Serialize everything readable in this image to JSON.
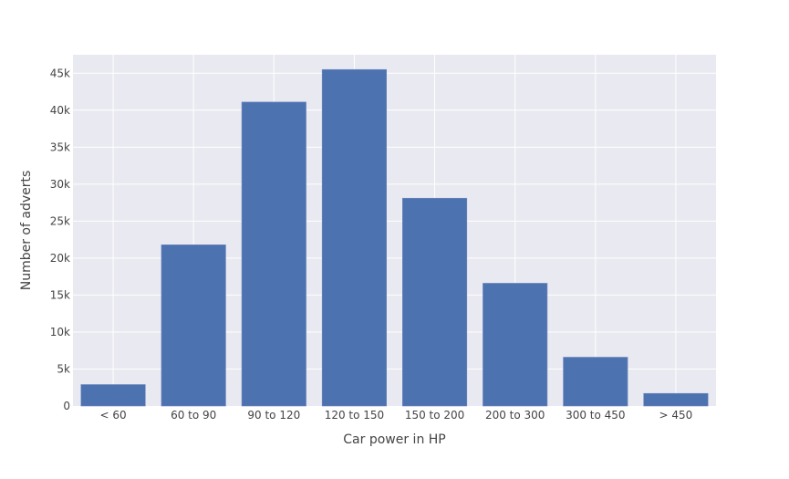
{
  "chart_data": {
    "type": "bar",
    "title": "",
    "xlabel": "Car power in HP",
    "ylabel": "Number of adverts",
    "categories": [
      "< 60",
      "60 to 90",
      "90 to 120",
      "120 to 150",
      "150 to 200",
      "200 to 300",
      "300 to 450",
      "> 450"
    ],
    "values": [
      2900,
      21800,
      41100,
      45500,
      28100,
      16600,
      6600,
      1700
    ],
    "ylim": [
      0,
      47500
    ],
    "yticks": [
      0,
      5000,
      10000,
      15000,
      20000,
      25000,
      30000,
      35000,
      40000,
      45000
    ],
    "ytick_labels": [
      "0",
      "5k",
      "10k",
      "15k",
      "20k",
      "25k",
      "30k",
      "35k",
      "40k",
      "45k"
    ],
    "grid": true,
    "legend": "none",
    "colors": {
      "bar": "#4c72b0",
      "plot_background": "#e9e9f1",
      "grid": "#ffffff",
      "text": "#444444"
    }
  }
}
